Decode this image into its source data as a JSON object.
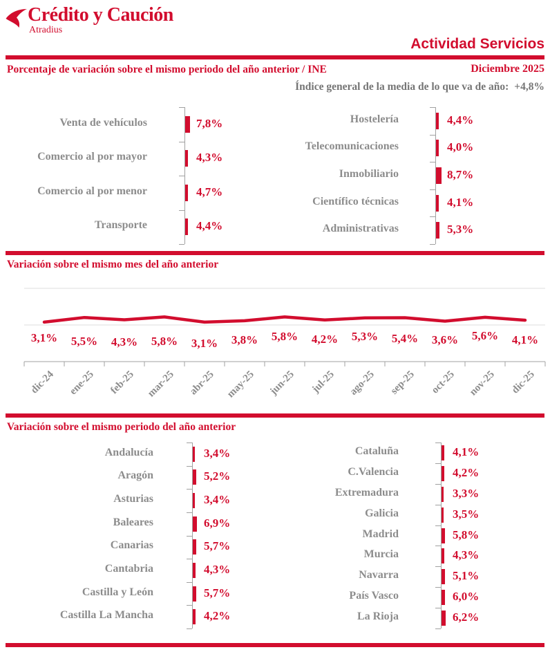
{
  "brand": {
    "name": "Crédito y Caución",
    "subname": "Atradius"
  },
  "header": {
    "title": "Actividad Servicios"
  },
  "section1": {
    "title": "Porcentaje de variación sobre el mismo periodo del año anterior / INE",
    "date": "Diciembre 2025",
    "index_label": "Índice general de la media de lo que va de año:",
    "index_value": "+4,8%"
  },
  "section2": {
    "title": "Variación sobre el mismo mes del año anterior"
  },
  "section3": {
    "title": "Variación sobre el mismo periodo del año anterior"
  },
  "colors": {
    "brand_red": "#D20D2E",
    "label_gray": "#8C8C8C",
    "index_gray": "#757575",
    "axis_gray": "#A0A0A0",
    "grid_gray": "#DCDCDC"
  },
  "chart_data": [
    {
      "id": "sectors-left",
      "type": "bar",
      "orientation": "horizontal",
      "unit": "%",
      "title": "Porcentaje de variación sobre el mismo periodo del año anterior / INE",
      "panel": "izquierda",
      "categories": [
        "Venta de vehículos",
        "Comercio al por mayor",
        "Comercio al por menor",
        "Transporte"
      ],
      "values": [
        7.8,
        4.3,
        4.7,
        4.4
      ],
      "labels": [
        "7,8%",
        "4,3%",
        "4,7%",
        "4,4%"
      ]
    },
    {
      "id": "sectors-right",
      "type": "bar",
      "orientation": "horizontal",
      "unit": "%",
      "title": "Porcentaje de variación sobre el mismo periodo del año anterior / INE",
      "panel": "derecha",
      "categories": [
        "Hostelería",
        "Telecomunicaciones",
        "Inmobiliario",
        "Científico técnicas",
        "Administrativas"
      ],
      "values": [
        4.4,
        4.0,
        8.7,
        4.1,
        5.3
      ],
      "labels": [
        "4,4%",
        "4,0%",
        "8,7%",
        "4,1%",
        "5,3%"
      ]
    },
    {
      "id": "monthly-line",
      "type": "line",
      "unit": "%",
      "title": "Variación sobre el mismo mes del año anterior",
      "x": [
        "dic-24",
        "ene-25",
        "feb-25",
        "mar-25",
        "abr-25",
        "may-25",
        "jun-25",
        "jul-25",
        "ago-25",
        "sep-25",
        "oct-25",
        "nov-25",
        "dic-25"
      ],
      "values": [
        3.1,
        5.5,
        4.3,
        5.8,
        3.1,
        3.8,
        5.8,
        4.2,
        5.3,
        5.4,
        3.6,
        5.6,
        4.1
      ],
      "labels": [
        "3,1%",
        "5,5%",
        "4,3%",
        "5,8%",
        "3,1%",
        "3,8%",
        "5,8%",
        "4,2%",
        "5,3%",
        "5,4%",
        "3,6%",
        "5,6%",
        "4,1%"
      ],
      "grid": true,
      "legend": false
    },
    {
      "id": "regions-left",
      "type": "bar",
      "orientation": "horizontal",
      "unit": "%",
      "title": "Variación sobre el mismo periodo del año anterior",
      "panel": "izquierda",
      "categories": [
        "Andalucía",
        "Aragón",
        "Asturias",
        "Baleares",
        "Canarias",
        "Cantabria",
        "Castilla y León",
        "Castilla La Mancha"
      ],
      "values": [
        3.4,
        5.2,
        3.4,
        6.9,
        5.7,
        4.3,
        5.7,
        4.2
      ],
      "labels": [
        "3,4%",
        "5,2%",
        "3,4%",
        "6,9%",
        "5,7%",
        "4,3%",
        "5,7%",
        "4,2%"
      ]
    },
    {
      "id": "regions-right",
      "type": "bar",
      "orientation": "horizontal",
      "unit": "%",
      "title": "Variación sobre el mismo periodo del año anterior",
      "panel": "derecha",
      "categories": [
        "Cataluña",
        "C.Valencia",
        "Extremadura",
        "Galicia",
        "Madrid",
        "Murcia",
        "Navarra",
        "País Vasco",
        "La Rioja"
      ],
      "values": [
        4.1,
        4.2,
        3.3,
        3.5,
        5.8,
        4.3,
        5.1,
        6.0,
        6.2
      ],
      "labels": [
        "4,1%",
        "4,2%",
        "3,3%",
        "3,5%",
        "5,8%",
        "4,3%",
        "5,1%",
        "6,0%",
        "6,2%"
      ]
    }
  ]
}
